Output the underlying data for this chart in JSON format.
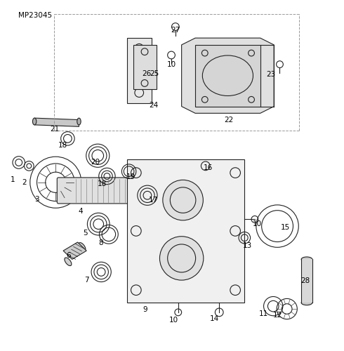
{
  "background_color": "#ffffff",
  "watermark": "MP23045",
  "line_color": "#222222"
}
